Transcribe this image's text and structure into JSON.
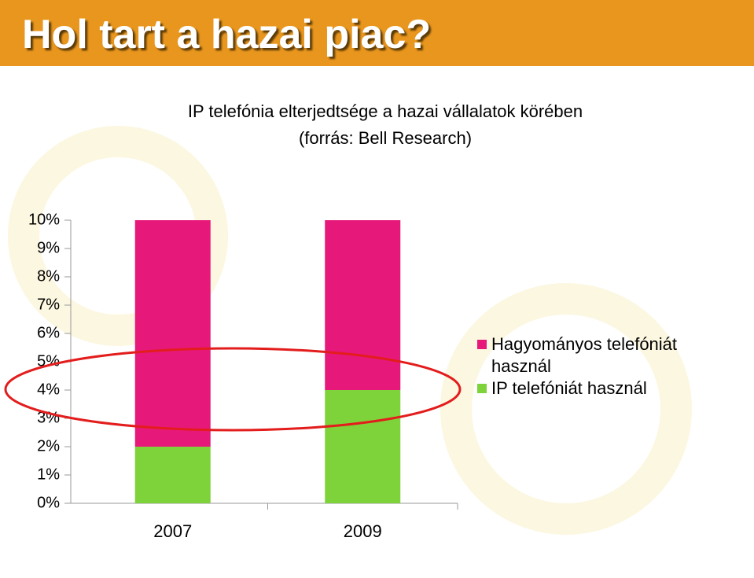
{
  "header": {
    "title": "Hol tart a hazai piac?"
  },
  "chart_data": {
    "type": "stacked_bar",
    "title": "IP telefónia elterjedtsége a hazai vállalatok körében",
    "subtitle": "(forrás: Bell Research)",
    "categories": [
      "2007",
      "2009"
    ],
    "series": [
      {
        "name": "IP telefóniát használ",
        "color": "#7ed23a",
        "values": [
          2,
          4
        ]
      },
      {
        "name": "Hagyományos telefóniát használ",
        "color": "#e6197a",
        "values": [
          8,
          6
        ]
      }
    ],
    "ylim": [
      0,
      10
    ],
    "yticks": [
      {
        "value": 0,
        "label": "0%"
      },
      {
        "value": 1,
        "label": "1%"
      },
      {
        "value": 2,
        "label": "2%"
      },
      {
        "value": 3,
        "label": "3%"
      },
      {
        "value": 4,
        "label": "4%"
      },
      {
        "value": 5,
        "label": "5%"
      },
      {
        "value": 6,
        "label": "6%"
      },
      {
        "value": 7,
        "label": "7%"
      },
      {
        "value": 8,
        "label": "8%"
      },
      {
        "value": 9,
        "label": "9%"
      },
      {
        "value": 10,
        "label": "10%"
      }
    ],
    "grid": false,
    "legend": "right"
  }
}
